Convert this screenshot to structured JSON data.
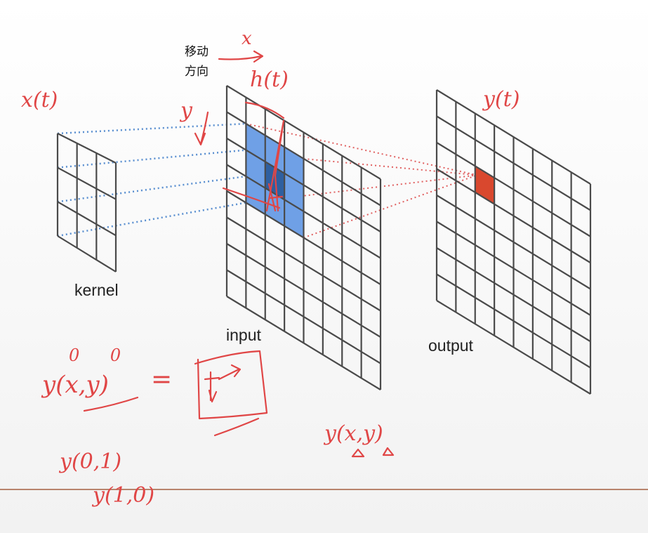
{
  "labels": {
    "kernel": "kernel",
    "input": "input",
    "output": "output",
    "direction_line1": "移动",
    "direction_line2": "方向"
  },
  "annotations": {
    "x_axis": "x",
    "y_axis": "y",
    "kernel_func": "x(t)",
    "input_func": "h(t)",
    "output_func": "y(t)",
    "formula_lhs": "y(x,y)",
    "formula_superscript": "0 0",
    "formula_eq": "=",
    "shift_example_1": "y(0,1)",
    "shift_example_2": "y(1,0)",
    "general_y": "y(x,y)"
  },
  "grids": {
    "kernel": {
      "rows": 3,
      "cols": 3
    },
    "input": {
      "rows": 8,
      "cols": 8,
      "highlight_start_row": 1,
      "highlight_start_col": 1,
      "highlight_size": 3
    },
    "output": {
      "rows": 8,
      "cols": 8,
      "highlight_row": 2,
      "highlight_col": 2
    }
  },
  "colors": {
    "grid_line": "#4a4a4a",
    "input_highlight": "#6fa0e6",
    "input_center": "#2f5f9f",
    "output_cell": "#d9482e",
    "dotted_blue": "#5a8fd0",
    "dotted_red": "#e06060",
    "ink": "#e04646",
    "divider": "#b8836c"
  }
}
